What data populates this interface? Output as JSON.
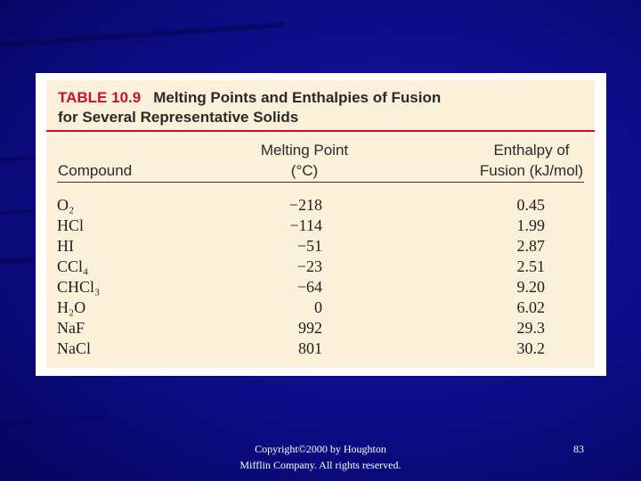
{
  "table": {
    "number_label": "TABLE 10.9",
    "title_line1": "Melting Points and Enthalpies of Fusion",
    "title_line2": "for Several Representative Solids",
    "headers": {
      "compound": "Compound",
      "melting_point_line1": "Melting Point",
      "melting_point_line2": "(°C)",
      "enthalpy_line1": "Enthalpy of",
      "enthalpy_line2": "Fusion (kJ/mol)"
    },
    "rows": [
      {
        "compound": "O₂",
        "melting_point": "−218",
        "enthalpy": "0.45"
      },
      {
        "compound": "HCl",
        "melting_point": "−114",
        "enthalpy": "1.99"
      },
      {
        "compound": "HI",
        "melting_point": "−51",
        "enthalpy": "2.87"
      },
      {
        "compound": "CCl₄",
        "melting_point": "−23",
        "enthalpy": "2.51"
      },
      {
        "compound": "CHCl₃",
        "melting_point": "−64",
        "enthalpy": "9.20"
      },
      {
        "compound": "H₂O",
        "melting_point": "0",
        "enthalpy": "6.02"
      },
      {
        "compound": "NaF",
        "melting_point": "992",
        "enthalpy": "29.3"
      },
      {
        "compound": "NaCl",
        "melting_point": "801",
        "enthalpy": "30.2"
      }
    ]
  },
  "footer": {
    "copyright_line1": "Copyright©2000 by Houghton",
    "copyright_line2": "Mifflin Company. All rights reserved.",
    "page_number": "83"
  },
  "colors": {
    "background": "#0c0c86",
    "table_panel": "#fbf0da",
    "accent_red": "#c8102e"
  }
}
